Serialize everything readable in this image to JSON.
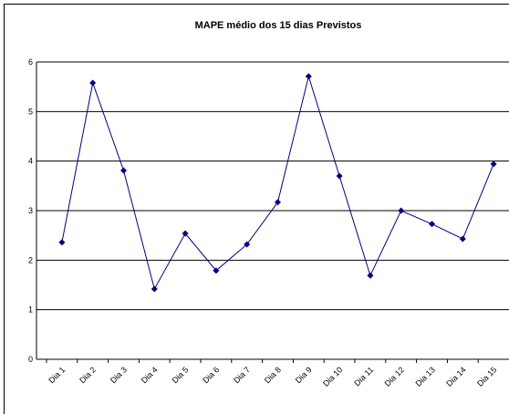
{
  "chart_data": {
    "type": "line",
    "title": "MAPE médio dos 15 dias Previstos",
    "categories": [
      "Dia 1",
      "Dia 2",
      "Dia 3",
      "Dia 4",
      "Dia 5",
      "Dia 6",
      "Dia 7",
      "Dia 8",
      "Dia 9",
      "Dia 10",
      "Dia 11",
      "Dia 12",
      "Dia 13",
      "Dia 14",
      "Dia 15"
    ],
    "series": [
      {
        "name": "MAPE",
        "color": "#000080",
        "values": [
          2.36,
          5.58,
          3.81,
          1.42,
          2.54,
          1.79,
          2.32,
          3.17,
          5.71,
          3.7,
          1.69,
          3.0,
          2.73,
          2.43,
          3.94
        ]
      }
    ],
    "ylim": [
      0,
      6
    ],
    "yticks": [
      0,
      1,
      2,
      3,
      4,
      5,
      6
    ],
    "grid": true
  }
}
